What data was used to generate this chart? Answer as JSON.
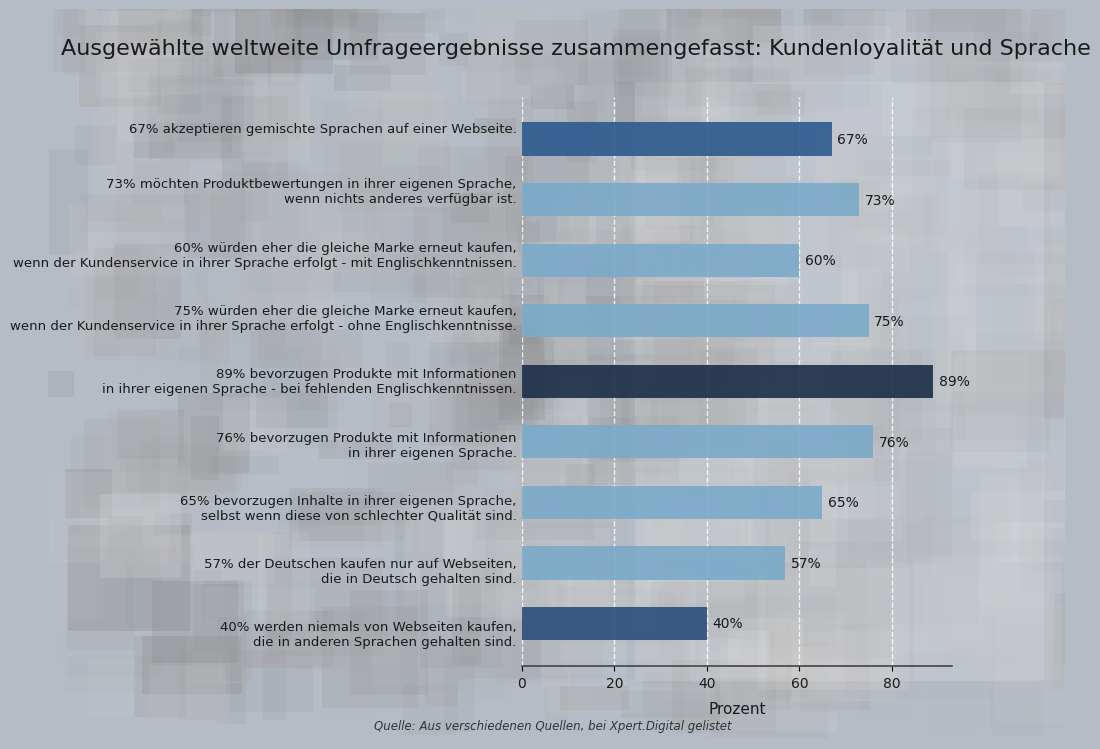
{
  "title": "Ausgewählte weltweite Umfrageergebnisse zusammengefasst: Kundenloyalität und Sprache",
  "source": "Quelle: Aus verschiedenen Quellen, bei Xpert.Digital gelistet",
  "xlabel": "Prozent",
  "xlim": [
    0,
    93
  ],
  "xticks": [
    0,
    20,
    40,
    60,
    80
  ],
  "categories": [
    "40% werden niemals von Webseiten kaufen,\ndie in anderen Sprachen gehalten sind.",
    "57% der Deutschen kaufen nur auf Webseiten,\ndie in Deutsch gehalten sind.",
    "65% bevorzugen Inhalte in ihrer eigenen Sprache,\nselbst wenn diese von schlechter Qualität sind.",
    "76% bevorzugen Produkte mit Informationen\nin ihrer eigenen Sprache.",
    "89% bevorzugen Produkte mit Informationen\nin ihrer eigenen Sprache - bei fehlenden Englischkenntnissen.",
    "75% würden eher die gleiche Marke erneut kaufen,\nwenn der Kundenservice in ihrer Sprache erfolgt - ohne Englischkenntnisse.",
    "60% würden eher die gleiche Marke erneut kaufen,\nwenn der Kundenservice in ihrer Sprache erfolgt - mit Englischkenntnissen.",
    "73% möchten Produktbewertungen in ihrer eigenen Sprache,\nwenn nichts anderes verfügbar ist.",
    "67% akzeptieren gemischte Sprachen auf einer Webseite."
  ],
  "values": [
    40,
    57,
    65,
    76,
    89,
    75,
    60,
    73,
    67
  ],
  "bar_colors": [
    "#2d4e7e",
    "#7baac9",
    "#7baac9",
    "#7baac9",
    "#1c2e48",
    "#7baac9",
    "#7baac9",
    "#7baac9",
    "#2d5a8e"
  ],
  "value_labels": [
    "40%",
    "57%",
    "65%",
    "76%",
    "89%",
    "75%",
    "60%",
    "73%",
    "67%"
  ],
  "bg_color": "#b8bfc8",
  "photo_color_light": "#c5cad0",
  "photo_color_dark": "#8a9099",
  "title_fontsize": 16,
  "label_fontsize": 9.5,
  "value_fontsize": 10,
  "xlabel_fontsize": 11,
  "bar_height": 0.55
}
